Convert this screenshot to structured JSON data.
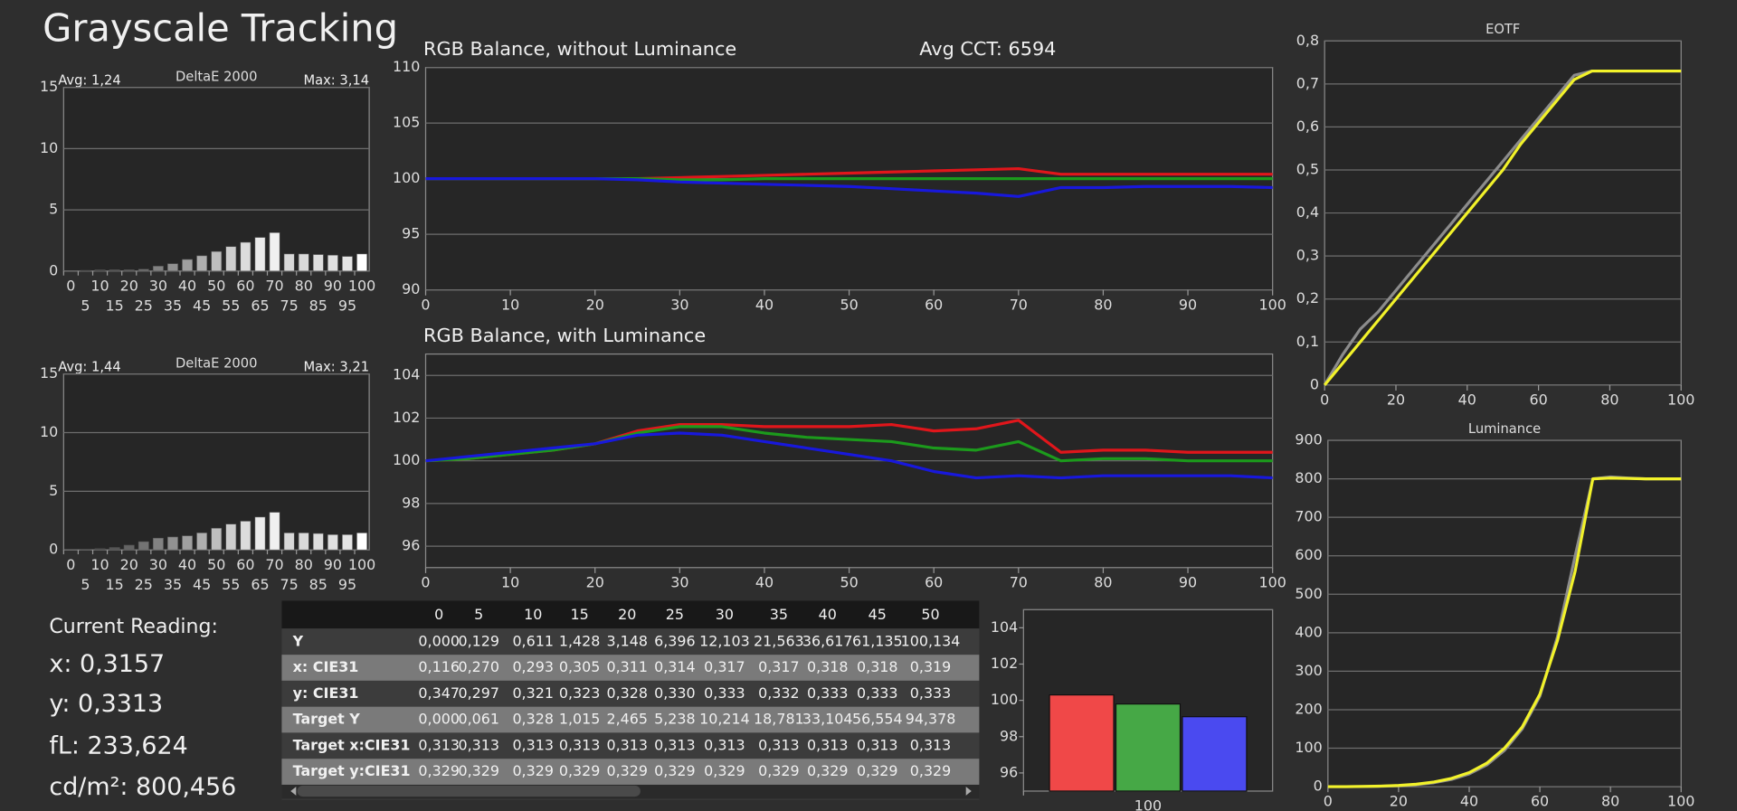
{
  "title": "Grayscale Tracking",
  "current_reading": {
    "label": "Current Reading:",
    "lines": [
      "x: 0,3157",
      "y: 0,3313",
      "fL: 233,624",
      "cd/m²: 800,456"
    ]
  },
  "table": {
    "columns": [
      "0",
      "5",
      "10",
      "15",
      "20",
      "25",
      "30",
      "35",
      "40",
      "45",
      "50"
    ],
    "rows": [
      [
        "Y",
        "0,000",
        "0,129",
        "0,611",
        "1,428",
        "3,148",
        "6,396",
        "12,103",
        "21,563",
        "36,617",
        "61,135",
        "100,134"
      ],
      [
        "x: CIE31",
        "0,116",
        "0,270",
        "0,293",
        "0,305",
        "0,311",
        "0,314",
        "0,317",
        "0,317",
        "0,318",
        "0,318",
        "0,319"
      ],
      [
        "y: CIE31",
        "0,347",
        "0,297",
        "0,321",
        "0,323",
        "0,328",
        "0,330",
        "0,333",
        "0,332",
        "0,333",
        "0,333",
        "0,333"
      ],
      [
        "Target Y",
        "0,000",
        "0,061",
        "0,328",
        "1,015",
        "2,465",
        "5,238",
        "10,214",
        "18,781",
        "33,104",
        "56,554",
        "94,378"
      ],
      [
        "Target x:CIE31",
        "0,313",
        "0,313",
        "0,313",
        "0,313",
        "0,313",
        "0,313",
        "0,313",
        "0,313",
        "0,313",
        "0,313",
        "0,313"
      ],
      [
        "Target y:CIE31",
        "0,329",
        "0,329",
        "0,329",
        "0,329",
        "0,329",
        "0,329",
        "0,329",
        "0,329",
        "0,329",
        "0,329",
        "0,329"
      ]
    ]
  },
  "chart_data": [
    {
      "type": "bar",
      "title": "DeltaE 2000",
      "annotations": [
        "Avg: 1,24",
        "Max: 3,14"
      ],
      "categories": [
        "0",
        "5",
        "10",
        "15",
        "20",
        "25",
        "30",
        "35",
        "40",
        "45",
        "50",
        "55",
        "60",
        "65",
        "70",
        "75",
        "80",
        "85",
        "90",
        "95",
        "100"
      ],
      "values": [
        0,
        0.05,
        0.1,
        0.1,
        0.1,
        0.15,
        0.4,
        0.6,
        0.95,
        1.25,
        1.6,
        2.0,
        2.35,
        2.75,
        3.14,
        1.4,
        1.4,
        1.35,
        1.3,
        1.2,
        1.4
      ],
      "colors": [
        "#282828",
        "#373737",
        "#464646",
        "#555555",
        "#646464",
        "#737373",
        "#828282",
        "#919191",
        "#a0a0a0",
        "#afafaf",
        "#bebebe",
        "#cdcdcd",
        "#dcdcdc",
        "#ebebeb",
        "#f0f0f0",
        "#d8d8d8",
        "#dadada",
        "#dddddd",
        "#e0e0e0",
        "#e4e4e4",
        "#ffffff"
      ],
      "ylim": [
        0,
        15
      ],
      "yticks": [
        0,
        5,
        10,
        15
      ],
      "grid": true
    },
    {
      "type": "bar",
      "title": "DeltaE 2000",
      "annotations": [
        "Avg: 1,44",
        "Max: 3,21"
      ],
      "categories": [
        "0",
        "5",
        "10",
        "15",
        "20",
        "25",
        "30",
        "35",
        "40",
        "45",
        "50",
        "55",
        "60",
        "65",
        "70",
        "75",
        "80",
        "85",
        "90",
        "95",
        "100"
      ],
      "values": [
        0,
        0.05,
        0.1,
        0.2,
        0.4,
        0.7,
        1.0,
        1.1,
        1.2,
        1.45,
        1.85,
        2.2,
        2.45,
        2.8,
        3.21,
        1.45,
        1.45,
        1.4,
        1.3,
        1.3,
        1.45
      ],
      "colors": [
        "#282828",
        "#373737",
        "#464646",
        "#555555",
        "#646464",
        "#737373",
        "#828282",
        "#919191",
        "#a0a0a0",
        "#afafaf",
        "#bebebe",
        "#cdcdcd",
        "#dcdcdc",
        "#ebebeb",
        "#f0f0f0",
        "#d8d8d8",
        "#dadada",
        "#dddddd",
        "#e0e0e0",
        "#e4e4e4",
        "#ffffff"
      ],
      "ylim": [
        0,
        15
      ],
      "yticks": [
        0,
        5,
        10,
        15
      ],
      "grid": true
    },
    {
      "type": "line",
      "title": "RGB Balance, without Luminance",
      "annotations": [
        "Avg CCT: 6594"
      ],
      "x": [
        0,
        5,
        10,
        15,
        20,
        25,
        30,
        35,
        40,
        45,
        50,
        55,
        60,
        65,
        70,
        75,
        80,
        85,
        90,
        95,
        100
      ],
      "series": [
        {
          "color": "#e0161b",
          "values": [
            100,
            100,
            100,
            100,
            100,
            100,
            100.1,
            100.2,
            100.3,
            100.4,
            100.5,
            100.6,
            100.7,
            100.8,
            100.9,
            100.4,
            100.4,
            100.4,
            100.4,
            100.4,
            100.4
          ]
        },
        {
          "color": "#1c9a1c",
          "values": [
            100,
            100,
            100,
            100,
            100,
            100,
            99.9,
            99.9,
            100,
            100,
            100,
            100,
            100,
            100,
            100,
            100,
            100,
            100,
            100,
            100,
            100
          ]
        },
        {
          "color": "#1818dc",
          "values": [
            100,
            100,
            100,
            100,
            100,
            99.9,
            99.7,
            99.6,
            99.5,
            99.4,
            99.3,
            99.1,
            98.9,
            98.7,
            98.4,
            99.2,
            99.2,
            99.3,
            99.3,
            99.3,
            99.2
          ]
        }
      ],
      "xlim": [
        0,
        100
      ],
      "xticks": [
        0,
        10,
        20,
        30,
        40,
        50,
        60,
        70,
        80,
        90,
        100
      ],
      "ylim": [
        90,
        110
      ],
      "yticks": [
        90,
        95,
        100,
        105,
        110
      ],
      "grid": true
    },
    {
      "type": "line",
      "title": "RGB Balance, with Luminance",
      "x": [
        0,
        5,
        10,
        15,
        20,
        25,
        30,
        35,
        40,
        45,
        50,
        55,
        60,
        65,
        70,
        75,
        80,
        85,
        90,
        95,
        100
      ],
      "series": [
        {
          "color": "#e0161b",
          "values": [
            100,
            100.1,
            100.3,
            100.5,
            100.8,
            101.4,
            101.7,
            101.7,
            101.6,
            101.6,
            101.6,
            101.7,
            101.4,
            101.5,
            101.9,
            100.4,
            100.5,
            100.5,
            100.4,
            100.4,
            100.4
          ]
        },
        {
          "color": "#1c9a1c",
          "values": [
            100,
            100.1,
            100.3,
            100.5,
            100.8,
            101.3,
            101.6,
            101.6,
            101.3,
            101.1,
            101.0,
            100.9,
            100.6,
            100.5,
            100.9,
            100.0,
            100.1,
            100.1,
            100.0,
            100.0,
            100.0
          ]
        },
        {
          "color": "#1818dc",
          "values": [
            100,
            100.2,
            100.4,
            100.6,
            100.8,
            101.2,
            101.3,
            101.2,
            100.9,
            100.6,
            100.3,
            100.0,
            99.5,
            99.2,
            99.3,
            99.2,
            99.3,
            99.3,
            99.3,
            99.3,
            99.2
          ]
        }
      ],
      "xlim": [
        0,
        100
      ],
      "xticks": [
        0,
        10,
        20,
        30,
        40,
        50,
        60,
        70,
        80,
        90,
        100
      ],
      "ylim": [
        95,
        105
      ],
      "yticks": [
        96,
        98,
        100,
        102,
        104
      ],
      "grid": true
    },
    {
      "type": "line",
      "title": "EOTF",
      "x": [
        0,
        5,
        10,
        15,
        20,
        25,
        30,
        35,
        40,
        45,
        50,
        55,
        60,
        65,
        70,
        75,
        80,
        85,
        90,
        95,
        100
      ],
      "series": [
        {
          "color": "#8c8c8c",
          "values": [
            0,
            0.07,
            0.13,
            0.17,
            0.22,
            0.27,
            0.32,
            0.37,
            0.42,
            0.47,
            0.52,
            0.57,
            0.62,
            0.67,
            0.72,
            0.73,
            0.73,
            0.73,
            0.73,
            0.73,
            0.73
          ]
        },
        {
          "color": "#f2f22a",
          "values": [
            0,
            0.05,
            0.1,
            0.15,
            0.2,
            0.25,
            0.3,
            0.35,
            0.4,
            0.45,
            0.5,
            0.56,
            0.61,
            0.66,
            0.71,
            0.73,
            0.73,
            0.73,
            0.73,
            0.73,
            0.73
          ]
        }
      ],
      "xlim": [
        0,
        100
      ],
      "xticks": [
        0,
        20,
        40,
        60,
        80,
        100
      ],
      "ylim": [
        0,
        0.8
      ],
      "yticks": [
        0,
        {
          "value": 0.1,
          "label": "0,1"
        },
        {
          "value": 0.2,
          "label": "0,2"
        },
        {
          "value": 0.3,
          "label": "0,3"
        },
        {
          "value": 0.4,
          "label": "0,4"
        },
        {
          "value": 0.5,
          "label": "0,5"
        },
        {
          "value": 0.6,
          "label": "0,6"
        },
        {
          "value": 0.7,
          "label": "0,7"
        },
        {
          "value": 0.8,
          "label": "0,8"
        }
      ],
      "grid": true
    },
    {
      "type": "line",
      "title": "Luminance",
      "x": [
        0,
        5,
        10,
        15,
        20,
        25,
        30,
        35,
        40,
        45,
        50,
        55,
        60,
        65,
        70,
        75,
        80,
        85,
        90,
        95,
        100
      ],
      "series": [
        {
          "color": "#8c8c8c",
          "values": [
            0,
            0.061,
            0.328,
            1.015,
            2.465,
            5.238,
            10.214,
            18.781,
            33.104,
            56.554,
            94.378,
            150,
            235,
            390,
            600,
            800,
            805,
            802,
            800,
            800,
            800
          ]
        },
        {
          "color": "#f2f22a",
          "values": [
            0,
            0.129,
            0.611,
            1.428,
            3.148,
            6.396,
            12.103,
            21.563,
            36.617,
            61.135,
            100.134,
            155,
            240,
            380,
            560,
            800,
            802,
            801,
            800,
            800,
            800
          ]
        }
      ],
      "xlim": [
        0,
        100
      ],
      "xticks": [
        0,
        20,
        40,
        60,
        80,
        100
      ],
      "ylim": [
        0,
        900
      ],
      "yticks": [
        0,
        100,
        200,
        300,
        400,
        500,
        600,
        700,
        800,
        900
      ],
      "grid": true
    },
    {
      "type": "bar",
      "categories": [
        "100"
      ],
      "series": [
        {
          "color": "#f04848",
          "values": [
            100.3
          ]
        },
        {
          "color": "#46a846",
          "values": [
            99.8
          ]
        },
        {
          "color": "#4a4af0",
          "values": [
            99.1
          ]
        }
      ],
      "ylim": [
        95,
        105
      ],
      "yticks": [
        96,
        98,
        100,
        102,
        104
      ],
      "grid": false
    }
  ]
}
